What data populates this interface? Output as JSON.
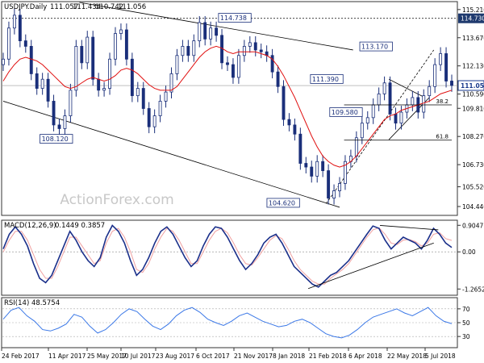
{
  "chart_data": {
    "type": "candlestick",
    "header": {
      "symbol": "USDJPY.Daily",
      "open": "111.057",
      "high": "111.434",
      "low": "110.742",
      "close": "111.056"
    },
    "watermark": "ActionForex.com",
    "x_ticks": [
      "24 Feb 2017",
      "11 Apr 2017",
      "25 May 2017",
      "10 Jul 2017",
      "23 Aug 2017",
      "6 Oct 2017",
      "21 Nov 2017",
      "8 Jan 2018",
      "21 Feb 2018",
      "6 Apr 2018",
      "22 May 2018",
      "5 Jul 2018"
    ],
    "price_axis": {
      "ylim": [
        104.0,
        115.6
      ],
      "ticks": [
        "115.210",
        "113.670",
        "112.130",
        "110.590",
        "109.810",
        "108.270",
        "106.730",
        "105.520",
        "104.440"
      ],
      "tick_values": [
        115.21,
        113.67,
        112.13,
        110.59,
        109.81,
        108.27,
        106.73,
        105.52,
        104.44
      ],
      "current": "111.056",
      "current_value": 111.056,
      "level_label": "114.730",
      "level_value": 114.73,
      "current_color": "#1a3a8c",
      "level_color": "#1f3a6e"
    },
    "close_series": [
      112.5,
      114.2,
      114.9,
      113.5,
      113.2,
      111.7,
      110.9,
      111.4,
      110.2,
      108.9,
      108.7,
      109.4,
      110.8,
      113.2,
      112.3,
      113.7,
      111.4,
      110.8,
      110.9,
      112.5,
      113.9,
      114.1,
      112.5,
      110.5,
      110.9,
      109.8,
      108.8,
      109.4,
      110.2,
      110.7,
      111.7,
      112.7,
      113.2,
      112.7,
      113.5,
      114.5,
      113.6,
      114.2,
      113.8,
      112.3,
      112.2,
      111.5,
      112.7,
      113.2,
      113.4,
      113.0,
      112.9,
      112.7,
      111.8,
      111.0,
      109.2,
      108.9,
      108.4,
      106.8,
      106.6,
      106.1,
      106.9,
      106.4,
      104.9,
      105.3,
      105.7,
      106.9,
      107.2,
      108.2,
      109.0,
      109.3,
      110.0,
      110.6,
      111.2,
      109.5,
      109.0,
      109.6,
      110.0,
      110.4,
      109.6,
      110.5,
      111.0,
      112.2,
      112.8,
      111.3,
      111.06
    ],
    "ma_series": [
      111.3,
      111.8,
      112.2,
      112.5,
      112.6,
      112.5,
      112.4,
      112.2,
      111.9,
      111.6,
      111.3,
      111.0,
      110.9,
      111.0,
      111.2,
      111.4,
      111.5,
      111.4,
      111.3,
      111.4,
      111.6,
      111.9,
      112.0,
      111.9,
      111.7,
      111.4,
      111.1,
      110.9,
      110.8,
      110.8,
      110.8,
      111.0,
      111.4,
      111.8,
      112.2,
      112.6,
      112.9,
      113.1,
      113.2,
      113.1,
      112.9,
      112.8,
      112.9,
      112.9,
      112.9,
      112.9,
      112.8,
      112.7,
      112.5,
      112.1,
      111.6,
      111.0,
      110.4,
      109.7,
      109.0,
      108.3,
      107.7,
      107.2,
      106.9,
      106.7,
      106.6,
      106.7,
      106.9,
      107.2,
      107.6,
      108.0,
      108.4,
      108.8,
      109.2,
      109.4,
      109.5,
      109.7,
      109.8,
      109.9,
      110.0,
      110.1,
      110.2,
      110.4,
      110.6,
      110.7,
      110.8
    ],
    "price_labels": [
      {
        "text": "114.738",
        "x": 48,
        "y": 114.738
      },
      {
        "text": "113.170",
        "x": 79.5,
        "y": 113.17
      },
      {
        "text": "111.390",
        "x": 68.5,
        "y": 111.39
      },
      {
        "text": "108.120",
        "x": 8.2,
        "y": 108.12
      },
      {
        "text": "109.580",
        "x": 72.8,
        "y": 109.58
      },
      {
        "text": "104.620",
        "x": 58.8,
        "y": 104.62
      }
    ],
    "fib_levels": [
      {
        "label": "38.2",
        "value": 110.0
      },
      {
        "label": "61.8",
        "value": 108.07
      }
    ],
    "macd": {
      "label": "MACD(12,26,9)",
      "values": "0.1449 0.3857",
      "ticks": [
        "0.9047",
        "0.00",
        "-1.2652"
      ],
      "tick_values": [
        0.9047,
        0.0,
        -1.2652
      ],
      "ylim": [
        -1.45,
        1.05
      ],
      "macd_series": [
        0.1,
        0.6,
        0.85,
        0.6,
        0.2,
        -0.4,
        -0.9,
        -1.05,
        -0.8,
        -0.3,
        0.2,
        0.7,
        0.4,
        0.0,
        -0.3,
        -0.5,
        -0.2,
        0.5,
        0.9,
        0.7,
        0.3,
        -0.3,
        -0.8,
        -0.6,
        -0.2,
        0.3,
        0.7,
        0.85,
        0.6,
        0.2,
        -0.2,
        -0.5,
        -0.3,
        0.2,
        0.6,
        0.85,
        0.8,
        0.5,
        0.1,
        -0.3,
        -0.6,
        -0.4,
        -0.1,
        0.3,
        0.5,
        0.6,
        0.3,
        -0.1,
        -0.5,
        -0.7,
        -0.9,
        -1.1,
        -1.2,
        -1.0,
        -0.8,
        -0.7,
        -0.5,
        -0.3,
        0.0,
        0.3,
        0.6,
        0.88,
        0.8,
        0.4,
        0.1,
        0.3,
        0.5,
        0.4,
        0.3,
        0.1,
        0.4,
        0.8,
        0.6,
        0.3,
        0.15
      ],
      "signal_series": [
        0.0,
        0.4,
        0.7,
        0.7,
        0.4,
        -0.1,
        -0.6,
        -0.9,
        -0.9,
        -0.5,
        0.0,
        0.5,
        0.5,
        0.2,
        -0.1,
        -0.4,
        -0.3,
        0.3,
        0.7,
        0.8,
        0.5,
        0.0,
        -0.6,
        -0.7,
        -0.4,
        0.1,
        0.5,
        0.8,
        0.7,
        0.4,
        0.0,
        -0.4,
        -0.4,
        0.0,
        0.4,
        0.7,
        0.8,
        0.65,
        0.3,
        -0.1,
        -0.4,
        -0.45,
        -0.2,
        0.1,
        0.4,
        0.55,
        0.45,
        0.1,
        -0.3,
        -0.6,
        -0.8,
        -1.0,
        -1.1,
        -1.1,
        -0.9,
        -0.75,
        -0.6,
        -0.4,
        -0.1,
        0.2,
        0.5,
        0.75,
        0.82,
        0.6,
        0.3,
        0.25,
        0.4,
        0.42,
        0.35,
        0.2,
        0.3,
        0.6,
        0.65,
        0.45,
        0.39
      ]
    },
    "rsi": {
      "label": "RSI(14) 48.5754",
      "ticks": [
        "70",
        "50",
        "30"
      ],
      "tick_values": [
        70,
        50,
        30
      ],
      "ylim": [
        15,
        85
      ],
      "series": [
        55,
        68,
        72,
        60,
        52,
        40,
        38,
        42,
        48,
        62,
        58,
        45,
        35,
        40,
        50,
        62,
        70,
        66,
        55,
        45,
        40,
        48,
        60,
        68,
        72,
        65,
        55,
        50,
        46,
        52,
        60,
        64,
        58,
        52,
        48,
        44,
        46,
        52,
        55,
        50,
        42,
        34,
        30,
        28,
        32,
        40,
        50,
        58,
        62,
        66,
        70,
        64,
        60,
        66,
        72,
        60,
        52,
        48.58
      ]
    },
    "colors": {
      "candle": "#1a2f7a",
      "ma": "#e01010",
      "macd": "#1a2f8a",
      "signal": "#f0a0a0",
      "rsi": "#3b78e7",
      "trendline": "#000000",
      "watermark": "#c8c8c8"
    }
  }
}
